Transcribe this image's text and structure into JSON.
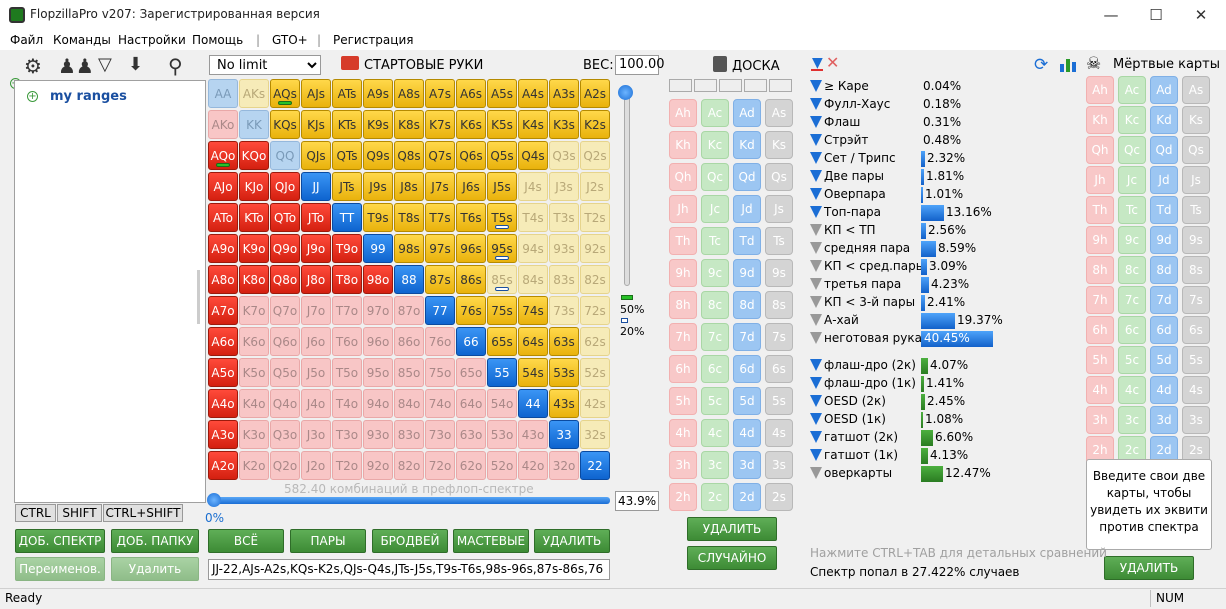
{
  "app": {
    "title": "FlopzillaPro v207: Зарегистрированная версия"
  },
  "menu": [
    "Файл",
    "Команды",
    "Настройки",
    "Помощь",
    "|",
    "GTO+",
    "|",
    "Регистрация"
  ],
  "left_panel": {
    "tree_root": "my ranges",
    "tabs": [
      "CTRL",
      "SHIFT",
      "CTRL+SHIFT"
    ],
    "buttons": {
      "add_spectrum": "ДОБ. СПЕКТР",
      "add_folder": "ДОБ. ПАПКУ",
      "rename": "Переименов.",
      "delete": "Удалить"
    }
  },
  "range_panel": {
    "limit": "No limit",
    "title": "СТАРТОВЫЕ РУКИ",
    "weight_label": "ВЕС:",
    "weight_value": "100.00",
    "slider_pct_top": "50%",
    "slider_pct_bottom": "20%",
    "combo_text": "582.40 комбинаций в префлоп-спектре",
    "combo_pct": "43.9%",
    "slider_zero": "0%",
    "buttons": {
      "all": "ВСЁ",
      "pairs": "ПАРЫ",
      "broadway": "БРОДВЕЙ",
      "suited": "МАСТЕВЫЕ",
      "delete": "УДАЛИТЬ"
    },
    "range_text": "JJ-22,AJs-A2s,KQs-K2s,QJs-Q4s,JTs-J5s,T9s-T6s,98s-96s,87s-86s,76"
  },
  "hand_grid": [
    [
      "AA:lblue",
      "AKs:lyel",
      "AQs:yel:g",
      "AJs:yel",
      "ATs:yel",
      "A9s:yel",
      "A8s:yel",
      "A7s:yel",
      "A6s:yel",
      "A5s:yel",
      "A4s:yel",
      "A3s:yel",
      "A2s:yel"
    ],
    [
      "AKo:pink",
      "KK:lblue",
      "KQs:yel",
      "KJs:yel",
      "KTs:yel",
      "K9s:yel",
      "K8s:yel",
      "K7s:yel",
      "K6s:yel",
      "K5s:yel",
      "K4s:yel",
      "K3s:yel",
      "K2s:yel"
    ],
    [
      "AQo:red:g",
      "KQo:red",
      "QQ:lblue",
      "QJs:yel",
      "QTs:yel",
      "Q9s:yel",
      "Q8s:yel",
      "Q7s:yel",
      "Q6s:yel",
      "Q5s:yel",
      "Q4s:yel",
      "Q3s:lyel",
      "Q2s:lyel"
    ],
    [
      "AJo:red",
      "KJo:red",
      "QJo:red",
      "JJ:blue",
      "JTs:yel",
      "J9s:yel",
      "J8s:yel",
      "J7s:yel",
      "J6s:yel",
      "J5s:yel",
      "J4s:lyel",
      "J3s:lyel",
      "J2s:lyel"
    ],
    [
      "ATo:red",
      "KTo:red",
      "QTo:red",
      "JTo:red",
      "TT:blue",
      "T9s:yel",
      "T8s:yel",
      "T7s:yel",
      "T6s:yel",
      "T5s:yel:b",
      "T4s:lyel",
      "T3s:lyel",
      "T2s:lyel"
    ],
    [
      "A9o:red",
      "K9o:red",
      "Q9o:red",
      "J9o:red",
      "T9o:red",
      "99:blue",
      "98s:yel",
      "97s:yel",
      "96s:yel",
      "95s:yel:b",
      "94s:lyel",
      "93s:lyel",
      "92s:lyel"
    ],
    [
      "A8o:red",
      "K8o:red",
      "Q8o:red",
      "J8o:red",
      "T8o:red",
      "98o:red",
      "88:blue",
      "87s:yel",
      "86s:yel",
      "85s:lyel:b",
      "84s:lyel",
      "83s:lyel",
      "82s:lyel"
    ],
    [
      "A7o:red",
      "K7o:pink",
      "Q7o:pink",
      "J7o:pink",
      "T7o:pink",
      "97o:pink",
      "87o:pink",
      "77:blue",
      "76s:yel",
      "75s:yel",
      "74s:yel",
      "73s:lyel",
      "72s:lyel"
    ],
    [
      "A6o:red",
      "K6o:pink",
      "Q6o:pink",
      "J6o:pink",
      "T6o:pink",
      "96o:pink",
      "86o:pink",
      "76o:pink",
      "66:blue",
      "65s:yel",
      "64s:yel",
      "63s:yel",
      "62s:lyel"
    ],
    [
      "A5o:red",
      "K5o:pink",
      "Q5o:pink",
      "J5o:pink",
      "T5o:pink",
      "95o:pink",
      "85o:pink",
      "75o:pink",
      "65o:pink",
      "55:blue",
      "54s:yel",
      "53s:yel",
      "52s:lyel"
    ],
    [
      "A4o:red",
      "K4o:pink",
      "Q4o:pink",
      "J4o:pink",
      "T4o:pink",
      "94o:pink",
      "84o:pink",
      "74o:pink",
      "64o:pink",
      "54o:pink",
      "44:blue",
      "43s:yel",
      "42s:lyel"
    ],
    [
      "A3o:red",
      "K3o:pink",
      "Q3o:pink",
      "J3o:pink",
      "T3o:pink",
      "93o:pink",
      "83o:pink",
      "73o:pink",
      "63o:pink",
      "53o:pink",
      "43o:pink",
      "33:blue",
      "32s:lyel"
    ],
    [
      "A2o:red",
      "K2o:pink",
      "Q2o:pink",
      "J2o:pink",
      "T2o:pink",
      "92o:pink",
      "82o:pink",
      "72o:pink",
      "62o:pink",
      "52o:pink",
      "42o:pink",
      "32o:pink",
      "22:blue"
    ]
  ],
  "board": {
    "title": "ДОСКА",
    "buttons": {
      "delete": "УДАЛИТЬ",
      "random": "СЛУЧАЙНО"
    }
  },
  "ranks": [
    "A",
    "K",
    "Q",
    "J",
    "T",
    "9",
    "8",
    "7",
    "6",
    "5",
    "4",
    "3",
    "2"
  ],
  "suits": [
    "h",
    "c",
    "d",
    "s"
  ],
  "stats": [
    {
      "label": "≥ Каре",
      "value": "0.04%",
      "bar": 0,
      "color": "bl",
      "arrow": "blue"
    },
    {
      "label": "Фулл-Хаус",
      "value": "0.18%",
      "bar": 0,
      "color": "bl",
      "arrow": "blue"
    },
    {
      "label": "Флаш",
      "value": "0.31%",
      "bar": 0,
      "color": "bl",
      "arrow": "blue"
    },
    {
      "label": "Стрэйт",
      "value": "0.48%",
      "bar": 0,
      "color": "bl",
      "arrow": "blue"
    },
    {
      "label": "Сет / Трипс",
      "value": "2.32%",
      "bar": 2.32,
      "color": "bl",
      "arrow": "blue"
    },
    {
      "label": "Две пары",
      "value": "1.81%",
      "bar": 1.81,
      "color": "bl",
      "arrow": "blue"
    },
    {
      "label": "Оверпара",
      "value": "1.01%",
      "bar": 1.01,
      "color": "bl",
      "arrow": "blue"
    },
    {
      "label": "Топ-пара",
      "value": "13.16%",
      "bar": 13.16,
      "color": "bl",
      "arrow": "blue"
    },
    {
      "label": "КП < ТП",
      "value": "2.56%",
      "bar": 2.56,
      "color": "bl",
      "arrow": "gray"
    },
    {
      "label": "средняя пара",
      "value": "8.59%",
      "bar": 8.59,
      "color": "bl",
      "arrow": "gray"
    },
    {
      "label": "КП < сред.пары",
      "value": "3.09%",
      "bar": 3.09,
      "color": "bl",
      "arrow": "gray"
    },
    {
      "label": "третья пара",
      "value": "4.23%",
      "bar": 4.23,
      "color": "bl",
      "arrow": "gray"
    },
    {
      "label": "КП < 3-й пары",
      "value": "2.41%",
      "bar": 2.41,
      "color": "bl",
      "arrow": "gray"
    },
    {
      "label": "А-хай",
      "value": "19.37%",
      "bar": 19.37,
      "color": "bl",
      "arrow": "gray"
    },
    {
      "label": "неготовая рука",
      "value": "40.45%",
      "bar": 40.45,
      "color": "bl",
      "arrow": "gray"
    },
    {
      "label": "флаш-дро (2к)",
      "value": "4.07%",
      "bar": 4.07,
      "color": "gr",
      "arrow": "blue"
    },
    {
      "label": "флаш-дро (1к)",
      "value": "1.41%",
      "bar": 1.41,
      "color": "gr",
      "arrow": "blue"
    },
    {
      "label": "OESD (2к)",
      "value": "2.45%",
      "bar": 2.45,
      "color": "gr",
      "arrow": "blue"
    },
    {
      "label": "OESD (1к)",
      "value": "1.08%",
      "bar": 1.08,
      "color": "gr",
      "arrow": "blue"
    },
    {
      "label": "гатшот (2к)",
      "value": "6.60%",
      "bar": 6.6,
      "color": "gr",
      "arrow": "blue"
    },
    {
      "label": "гатшот (1к)",
      "value": "4.13%",
      "bar": 4.13,
      "color": "gr",
      "arrow": "blue"
    },
    {
      "label": "оверкарты",
      "value": "12.47%",
      "bar": 12.47,
      "color": "gr",
      "arrow": "gray"
    }
  ],
  "dead_cards": {
    "title": "Мёртвые карты",
    "hint": "Введите свои две карты, чтобы увидеть их эквити против спектра",
    "delete": "УДАЛИТЬ"
  },
  "footer": {
    "ctrl_hint": "Нажмите CTRL+TAB для детальных сравнений",
    "hit_text": "Спектр попал в 27.422% случаев"
  },
  "statusbar": {
    "status": "Ready",
    "num": "NUM"
  },
  "icons": [
    "app-icon",
    "settings-gear-icon",
    "users-icon",
    "filter-add-icon",
    "import-icon",
    "search-icon",
    "cards-icon",
    "board-icon",
    "filter-icon",
    "clear-filter-icon",
    "refresh-icon",
    "chart-icon",
    "skull-icon",
    "minimize-icon",
    "maximize-icon",
    "close-icon",
    "tree-plus-icon"
  ]
}
